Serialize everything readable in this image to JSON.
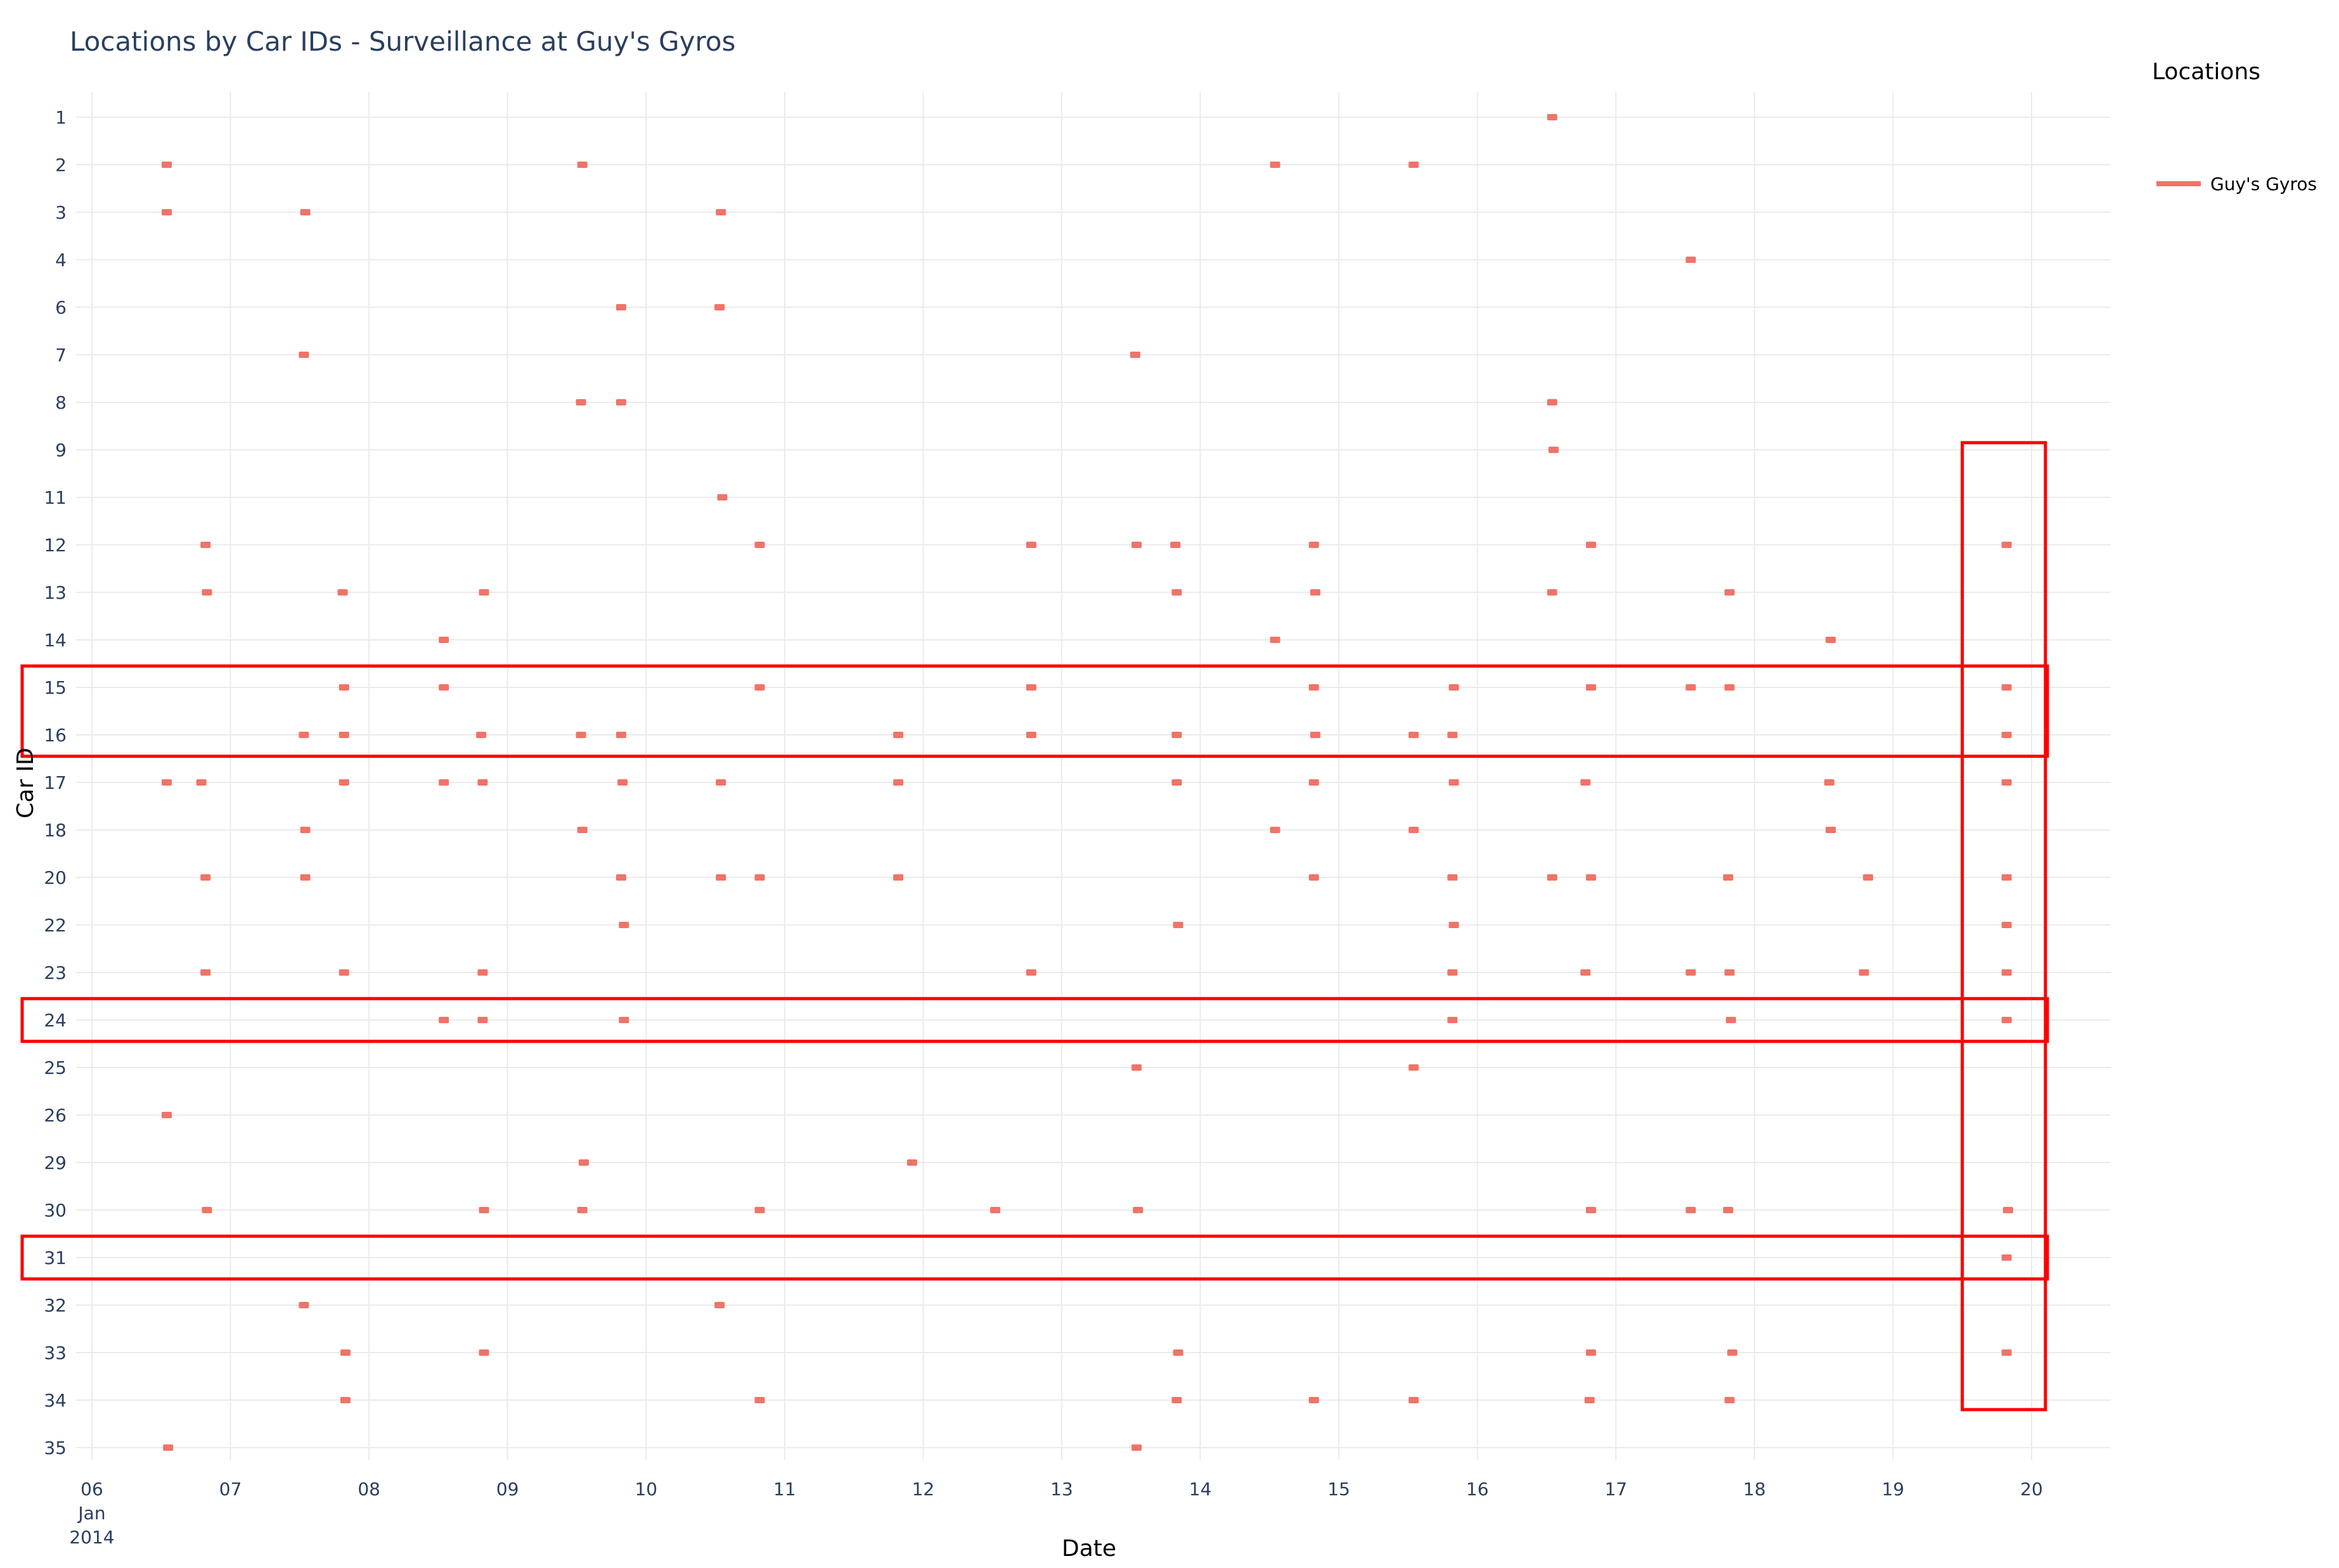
{
  "chart_data": {
    "type": "scatter",
    "title": "Locations by Car IDs - Surveillance at Guy's Gyros",
    "xlabel": "Date",
    "ylabel": "Car ID",
    "x_axis_format": "day of month; first tick also shows 'Jan' and '2014'",
    "x_range": [
      "2014-01-06",
      "2014-01-20"
    ],
    "x_tick_labels": [
      "06",
      "07",
      "08",
      "09",
      "10",
      "11",
      "12",
      "13",
      "14",
      "15",
      "16",
      "17",
      "18",
      "19",
      "20"
    ],
    "x_first_tick_month": "Jan",
    "x_first_tick_year": "2014",
    "y_categories": [
      "1",
      "2",
      "3",
      "4",
      "6",
      "7",
      "8",
      "9",
      "11",
      "12",
      "13",
      "14",
      "15",
      "16",
      "17",
      "18",
      "20",
      "22",
      "23",
      "24",
      "25",
      "26",
      "29",
      "30",
      "31",
      "32",
      "33",
      "34",
      "35"
    ],
    "grid": true,
    "legend": {
      "title": "Locations",
      "position": "top-right",
      "entries": [
        {
          "name": "Guy's Gyros",
          "color": "#f07368"
        }
      ]
    },
    "series": [
      {
        "name": "Guy's Gyros",
        "color": "#f07368",
        "points": [
          {
            "car": "1",
            "x": 16.54
          },
          {
            "car": "2",
            "x": 6.54
          },
          {
            "car": "2",
            "x": 9.54
          },
          {
            "car": "2",
            "x": 14.54
          },
          {
            "car": "2",
            "x": 15.54
          },
          {
            "car": "3",
            "x": 6.54
          },
          {
            "car": "3",
            "x": 7.54
          },
          {
            "car": "3",
            "x": 10.54
          },
          {
            "car": "4",
            "x": 17.54
          },
          {
            "car": "6",
            "x": 9.82
          },
          {
            "car": "6",
            "x": 10.53
          },
          {
            "car": "7",
            "x": 7.53
          },
          {
            "car": "7",
            "x": 13.53
          },
          {
            "car": "8",
            "x": 9.53
          },
          {
            "car": "8",
            "x": 9.82
          },
          {
            "car": "8",
            "x": 16.54
          },
          {
            "car": "9",
            "x": 16.55
          },
          {
            "car": "11",
            "x": 10.55
          },
          {
            "car": "12",
            "x": 6.82
          },
          {
            "car": "12",
            "x": 10.82
          },
          {
            "car": "12",
            "x": 12.78
          },
          {
            "car": "12",
            "x": 13.54
          },
          {
            "car": "12",
            "x": 13.82
          },
          {
            "car": "12",
            "x": 14.82
          },
          {
            "car": "12",
            "x": 16.82
          },
          {
            "car": "12",
            "x": 19.82
          },
          {
            "car": "13",
            "x": 6.83
          },
          {
            "car": "13",
            "x": 7.81
          },
          {
            "car": "13",
            "x": 8.83
          },
          {
            "car": "13",
            "x": 13.83
          },
          {
            "car": "13",
            "x": 14.83
          },
          {
            "car": "13",
            "x": 16.54
          },
          {
            "car": "13",
            "x": 17.82
          },
          {
            "car": "14",
            "x": 8.54
          },
          {
            "car": "14",
            "x": 14.54
          },
          {
            "car": "14",
            "x": 18.55
          },
          {
            "car": "15",
            "x": 7.82
          },
          {
            "car": "15",
            "x": 8.54
          },
          {
            "car": "15",
            "x": 10.82
          },
          {
            "car": "15",
            "x": 12.78
          },
          {
            "car": "15",
            "x": 14.82
          },
          {
            "car": "15",
            "x": 15.83
          },
          {
            "car": "15",
            "x": 16.82
          },
          {
            "car": "15",
            "x": 17.54
          },
          {
            "car": "15",
            "x": 17.82
          },
          {
            "car": "15",
            "x": 19.82
          },
          {
            "car": "16",
            "x": 7.53
          },
          {
            "car": "16",
            "x": 7.82
          },
          {
            "car": "16",
            "x": 8.81
          },
          {
            "car": "16",
            "x": 9.53
          },
          {
            "car": "16",
            "x": 9.82
          },
          {
            "car": "16",
            "x": 11.82
          },
          {
            "car": "16",
            "x": 12.78
          },
          {
            "car": "16",
            "x": 13.83
          },
          {
            "car": "16",
            "x": 14.83
          },
          {
            "car": "16",
            "x": 15.54
          },
          {
            "car": "16",
            "x": 15.82
          },
          {
            "car": "16",
            "x": 19.82
          },
          {
            "car": "17",
            "x": 6.54
          },
          {
            "car": "17",
            "x": 6.79
          },
          {
            "car": "17",
            "x": 7.82
          },
          {
            "car": "17",
            "x": 8.54
          },
          {
            "car": "17",
            "x": 8.82
          },
          {
            "car": "17",
            "x": 9.83
          },
          {
            "car": "17",
            "x": 10.54
          },
          {
            "car": "17",
            "x": 11.82
          },
          {
            "car": "17",
            "x": 13.83
          },
          {
            "car": "17",
            "x": 14.82
          },
          {
            "car": "17",
            "x": 15.83
          },
          {
            "car": "17",
            "x": 16.78
          },
          {
            "car": "17",
            "x": 18.54
          },
          {
            "car": "17",
            "x": 19.82
          },
          {
            "car": "18",
            "x": 7.54
          },
          {
            "car": "18",
            "x": 9.54
          },
          {
            "car": "18",
            "x": 14.54
          },
          {
            "car": "18",
            "x": 15.54
          },
          {
            "car": "18",
            "x": 18.55
          },
          {
            "car": "20",
            "x": 6.82
          },
          {
            "car": "20",
            "x": 7.54
          },
          {
            "car": "20",
            "x": 9.82
          },
          {
            "car": "20",
            "x": 10.54
          },
          {
            "car": "20",
            "x": 10.82
          },
          {
            "car": "20",
            "x": 11.82
          },
          {
            "car": "20",
            "x": 14.82
          },
          {
            "car": "20",
            "x": 15.82
          },
          {
            "car": "20",
            "x": 16.54
          },
          {
            "car": "20",
            "x": 16.82
          },
          {
            "car": "20",
            "x": 17.81
          },
          {
            "car": "20",
            "x": 18.82
          },
          {
            "car": "20",
            "x": 19.82
          },
          {
            "car": "22",
            "x": 9.84
          },
          {
            "car": "22",
            "x": 13.84
          },
          {
            "car": "22",
            "x": 15.83
          },
          {
            "car": "22",
            "x": 19.82
          },
          {
            "car": "23",
            "x": 6.82
          },
          {
            "car": "23",
            "x": 7.82
          },
          {
            "car": "23",
            "x": 8.82
          },
          {
            "car": "23",
            "x": 12.78
          },
          {
            "car": "23",
            "x": 15.82
          },
          {
            "car": "23",
            "x": 16.78
          },
          {
            "car": "23",
            "x": 17.54
          },
          {
            "car": "23",
            "x": 17.82
          },
          {
            "car": "23",
            "x": 18.79
          },
          {
            "car": "23",
            "x": 19.82
          },
          {
            "car": "24",
            "x": 8.54
          },
          {
            "car": "24",
            "x": 8.82
          },
          {
            "car": "24",
            "x": 9.84
          },
          {
            "car": "24",
            "x": 15.82
          },
          {
            "car": "24",
            "x": 17.83
          },
          {
            "car": "24",
            "x": 19.82
          },
          {
            "car": "25",
            "x": 13.54
          },
          {
            "car": "25",
            "x": 15.54
          },
          {
            "car": "26",
            "x": 6.54
          },
          {
            "car": "29",
            "x": 9.55
          },
          {
            "car": "29",
            "x": 11.92
          },
          {
            "car": "30",
            "x": 6.83
          },
          {
            "car": "30",
            "x": 8.83
          },
          {
            "car": "30",
            "x": 9.54
          },
          {
            "car": "30",
            "x": 10.82
          },
          {
            "car": "30",
            "x": 12.52
          },
          {
            "car": "30",
            "x": 13.55
          },
          {
            "car": "30",
            "x": 16.82
          },
          {
            "car": "30",
            "x": 17.54
          },
          {
            "car": "30",
            "x": 17.81
          },
          {
            "car": "30",
            "x": 19.83
          },
          {
            "car": "31",
            "x": 19.82
          },
          {
            "car": "32",
            "x": 7.53
          },
          {
            "car": "32",
            "x": 10.53
          },
          {
            "car": "33",
            "x": 7.83
          },
          {
            "car": "33",
            "x": 8.83
          },
          {
            "car": "33",
            "x": 13.84
          },
          {
            "car": "33",
            "x": 16.82
          },
          {
            "car": "33",
            "x": 17.84
          },
          {
            "car": "33",
            "x": 19.82
          },
          {
            "car": "34",
            "x": 7.83
          },
          {
            "car": "34",
            "x": 10.82
          },
          {
            "car": "34",
            "x": 13.83
          },
          {
            "car": "34",
            "x": 14.82
          },
          {
            "car": "34",
            "x": 15.54
          },
          {
            "car": "34",
            "x": 16.81
          },
          {
            "car": "34",
            "x": 17.82
          },
          {
            "car": "35",
            "x": 6.55
          },
          {
            "car": "35",
            "x": 13.54
          }
        ]
      }
    ],
    "highlight_boxes": [
      {
        "type": "rows",
        "cars": [
          "15",
          "16"
        ]
      },
      {
        "type": "rows",
        "cars": [
          "24"
        ]
      },
      {
        "type": "rows",
        "cars": [
          "31"
        ]
      },
      {
        "type": "column",
        "x_range": [
          19.5,
          20.1
        ],
        "car_range": [
          "9",
          "34"
        ]
      }
    ],
    "highlight_color": "#ff0000"
  }
}
